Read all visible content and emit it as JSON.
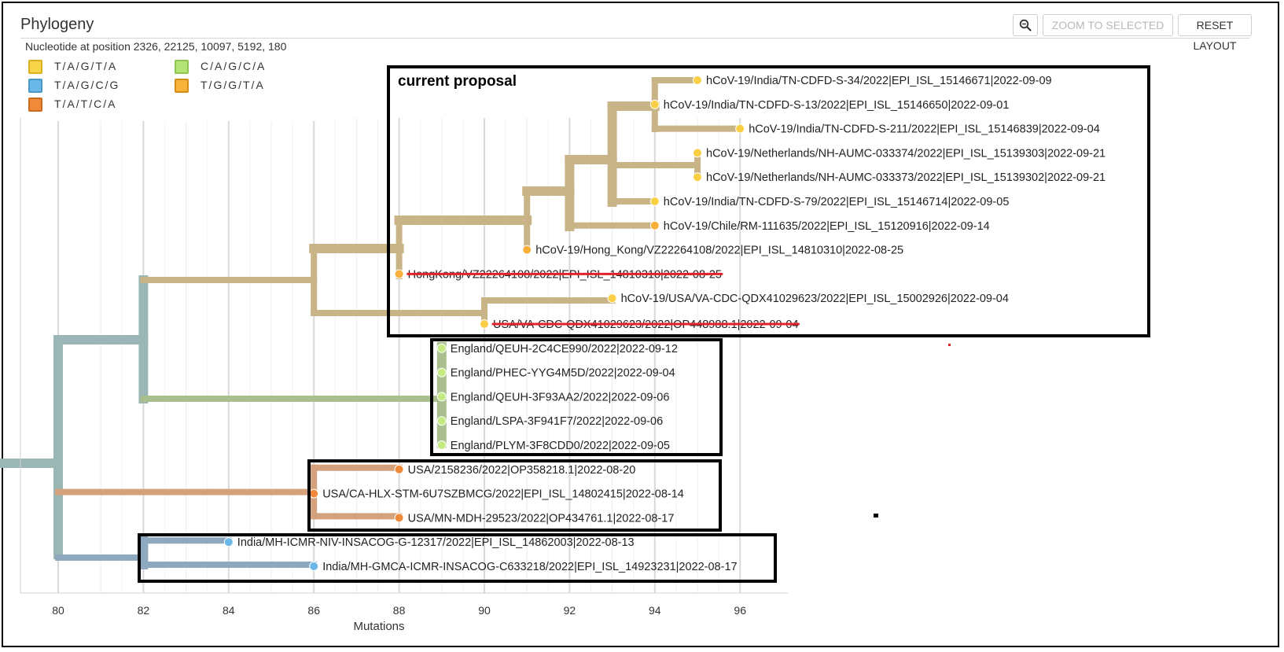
{
  "header": {
    "title": "Phylogeny",
    "subtitle": "Nucleotide at position 2326, 22125, 10097, 5192, 180",
    "buttons": {
      "zoom_to_selected": "ZOOM TO SELECTED",
      "reset_layout": "RESET LAYOUT"
    },
    "zoom_icon": "magnifier-minus-icon"
  },
  "legend": [
    {
      "label": "T/A/G/T/A",
      "color": "#f8d44a",
      "border": "#d9b01f"
    },
    {
      "label": "C/A/G/C/A",
      "color": "#b4e378",
      "border": "#8fc450"
    },
    {
      "label": "T/A/G/C/G",
      "color": "#6ab8e8",
      "border": "#4a98c8"
    },
    {
      "label": "T/G/G/T/A",
      "color": "#f8b33c",
      "border": "#d48e18"
    },
    {
      "label": "T/A/T/C/A",
      "color": "#f08a3a",
      "border": "#cc6a1e"
    }
  ],
  "axis": {
    "label": "Mutations",
    "ticks": [
      80,
      82,
      84,
      86,
      88,
      90,
      92,
      94,
      96
    ]
  },
  "annotations": {
    "current_proposal": "current proposal"
  },
  "colors": {
    "tan_branch": "#c8b487",
    "tan_branch_dark": "#c3ad80",
    "slate_branch": "#9bb7b5",
    "green_branch": "#a9c08e",
    "orange_branch": "#d3a27d",
    "blue_branch": "#8da8bf",
    "strike_red": "#e4202a",
    "box_border": "#000000"
  },
  "tips": [
    {
      "label": "hCoV-19/India/TN-CDFD-S-34/2022|EPI_ISL_15146671|2022-09-09",
      "x": 95,
      "color": "#f8cf45",
      "struck": false
    },
    {
      "label": "hCoV-19/India/TN-CDFD-S-13/2022|EPI_ISL_15146650|2022-09-01",
      "x": 94,
      "color": "#f8cf45",
      "struck": false
    },
    {
      "label": "hCoV-19/India/TN-CDFD-S-211/2022|EPI_ISL_15146839|2022-09-04",
      "x": 96,
      "color": "#f8cf45",
      "struck": false
    },
    {
      "label": "hCoV-19/Netherlands/NH-AUMC-033374/2022|EPI_ISL_15139303|2022-09-21",
      "x": 95,
      "color": "#f8cf45",
      "struck": false
    },
    {
      "label": "hCoV-19/Netherlands/NH-AUMC-033373/2022|EPI_ISL_15139302|2022-09-21",
      "x": 95,
      "color": "#f8cf45",
      "struck": false
    },
    {
      "label": "hCoV-19/India/TN-CDFD-S-79/2022|EPI_ISL_15146714|2022-09-05",
      "x": 94,
      "color": "#f8cf45",
      "struck": false
    },
    {
      "label": "hCoV-19/Chile/RM-111635/2022|EPI_ISL_15120916|2022-09-14",
      "x": 94,
      "color": "#f8b03a",
      "struck": false
    },
    {
      "label": "hCoV-19/Hong_Kong/VZ22264108/2022|EPI_ISL_14810310|2022-08-25",
      "x": 91,
      "color": "#f8b03a",
      "struck": false
    },
    {
      "label": "HongKong/VZ22264108/2022|EPI_ISL_14810310|2022-08-25",
      "x": 88,
      "color": "#f8b03a",
      "struck": true
    },
    {
      "label": "hCoV-19/USA/VA-CDC-QDX41029623/2022|EPI_ISL_15002926|2022-09-04",
      "x": 93,
      "color": "#f8cf45",
      "struck": false
    },
    {
      "label": "USA/VA-CDC-QDX41029623/2022|OP448988.1|2022-09-04",
      "x": 90,
      "color": "#f8cf45",
      "struck": true
    },
    {
      "label": "England/QEUH-2C4CE990/2022|2022-09-12",
      "x": 89,
      "color": "#c4ea82",
      "struck": false
    },
    {
      "label": "England/PHEC-YYG4M5D/2022|2022-09-04",
      "x": 89,
      "color": "#c4ea82",
      "struck": false
    },
    {
      "label": "England/QEUH-3F93AA2/2022|2022-09-06",
      "x": 89,
      "color": "#c4ea82",
      "struck": false
    },
    {
      "label": "England/LSPA-3F941F7/2022|2022-09-06",
      "x": 89,
      "color": "#c4ea82",
      "struck": false
    },
    {
      "label": "England/PLYM-3F8CDD0/2022|2022-09-05",
      "x": 89,
      "color": "#c4ea82",
      "struck": false
    },
    {
      "label": "USA/2158236/2022|OP358218.1|2022-08-20",
      "x": 88,
      "color": "#f08a3a",
      "struck": false
    },
    {
      "label": "USA/CA-HLX-STM-6U7SZBMCG/2022|EPI_ISL_14802415|2022-08-14",
      "x": 86,
      "color": "#f08a3a",
      "struck": false
    },
    {
      "label": "USA/MN-MDH-29523/2022|OP434761.1|2022-08-17",
      "x": 88,
      "color": "#f08a3a",
      "struck": false
    },
    {
      "label": "India/MH-ICMR-NIV-INSACOG-G-12317/2022|EPI_ISL_14862003|2022-08-13",
      "x": 84,
      "color": "#6ab8e8",
      "struck": false
    },
    {
      "label": "India/MH-GMCA-ICMR-INSACOG-C633218/2022|EPI_ISL_14923231|2022-08-17",
      "x": 86,
      "color": "#6ab8e8",
      "struck": false
    }
  ]
}
